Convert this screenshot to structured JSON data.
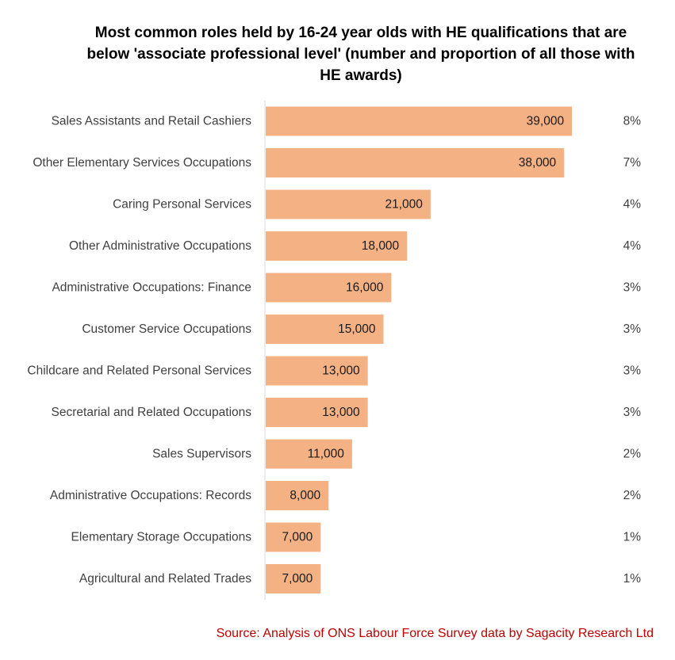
{
  "chart_data": {
    "type": "bar",
    "orientation": "horizontal",
    "title": "Most common roles held by 16-24 year olds with HE qualifications that are below 'associate professional level' (number and proportion of all those with HE awards)",
    "categories": [
      "Sales Assistants and Retail Cashiers",
      "Other Elementary Services Occupations",
      "Caring Personal Services",
      "Other Administrative Occupations",
      "Administrative Occupations: Finance",
      "Customer Service Occupations",
      "Childcare and Related Personal Services",
      "Secretarial and Related Occupations",
      "Sales Supervisors",
      "Administrative Occupations: Records",
      "Elementary Storage Occupations",
      "Agricultural and Related Trades"
    ],
    "values": [
      39000,
      38000,
      21000,
      18000,
      16000,
      15000,
      13000,
      13000,
      11000,
      8000,
      7000,
      7000
    ],
    "value_labels": [
      "39,000",
      "38,000",
      "21,000",
      "18,000",
      "16,000",
      "15,000",
      "13,000",
      "13,000",
      "11,000",
      "8,000",
      "7,000",
      "7,000"
    ],
    "percent_labels": [
      "8%",
      "7%",
      "4%",
      "4%",
      "3%",
      "3%",
      "3%",
      "3%",
      "2%",
      "2%",
      "1%",
      "1%"
    ],
    "xlim": [
      0,
      40000
    ],
    "grid": false,
    "legend": "none",
    "bar_color": "#f4b183",
    "axis_color": "#d9d9d9"
  },
  "source": {
    "text": "Source: Analysis of ONS Labour Force Survey data by Sagacity Research Ltd",
    "color": "#c00000"
  }
}
